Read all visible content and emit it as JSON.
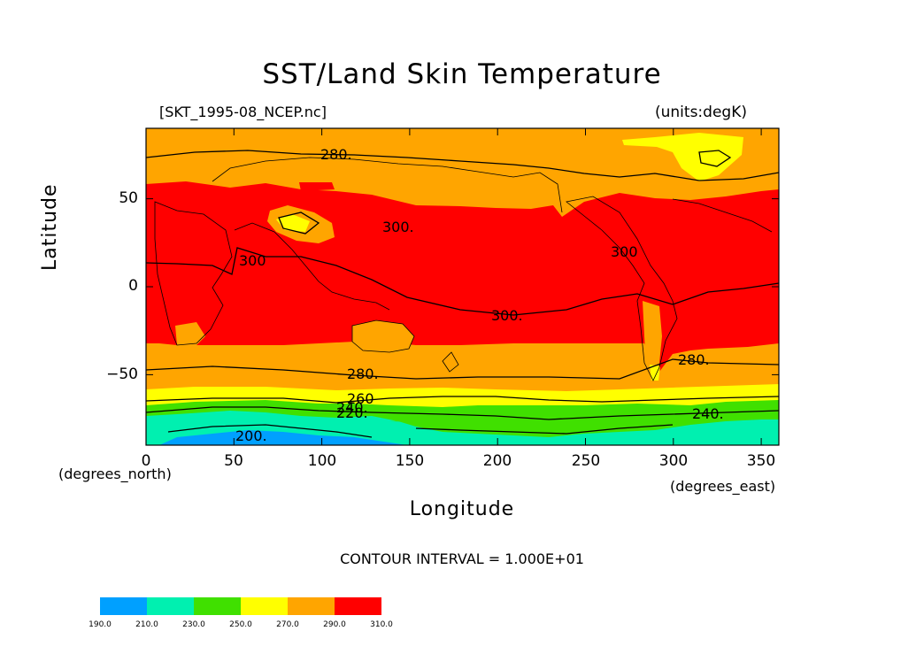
{
  "title": "SST/Land Skin Temperature",
  "file_label": "[SKT_1995-08_NCEP.nc]",
  "units_label": "(units:degK)",
  "x_axis": {
    "title": "Longitude",
    "units": "(degrees_east)",
    "ticks": [
      "0",
      "50",
      "100",
      "150",
      "200",
      "250",
      "300",
      "350"
    ],
    "range": [
      0,
      360
    ]
  },
  "y_axis": {
    "title": "Latitude",
    "units": "(degrees_north)",
    "ticks": [
      "50",
      "0",
      "−50"
    ],
    "range": [
      -90,
      90
    ]
  },
  "contour_interval": "CONTOUR INTERVAL = 1.000E+01",
  "contour_labels": [
    "280.",
    "300.",
    "300",
    "300",
    "300.",
    "280.",
    "280.",
    "260",
    "240.",
    "220.",
    "200.",
    "240."
  ],
  "colorbar": {
    "levels": [
      "190.0",
      "210.0",
      "230.0",
      "250.0",
      "270.0",
      "290.0",
      "310.0"
    ],
    "colors": [
      "#00a0ff",
      "#00f0b0",
      "#40e000",
      "#ffff00",
      "#ffa500",
      "#ff0000"
    ]
  },
  "colors": {
    "warm": "#ff0000",
    "mild": "#ffa500",
    "cool": "#ffff00",
    "cold": "#40e000",
    "colder": "#00f0b0",
    "coldest": "#00a0ff"
  }
}
